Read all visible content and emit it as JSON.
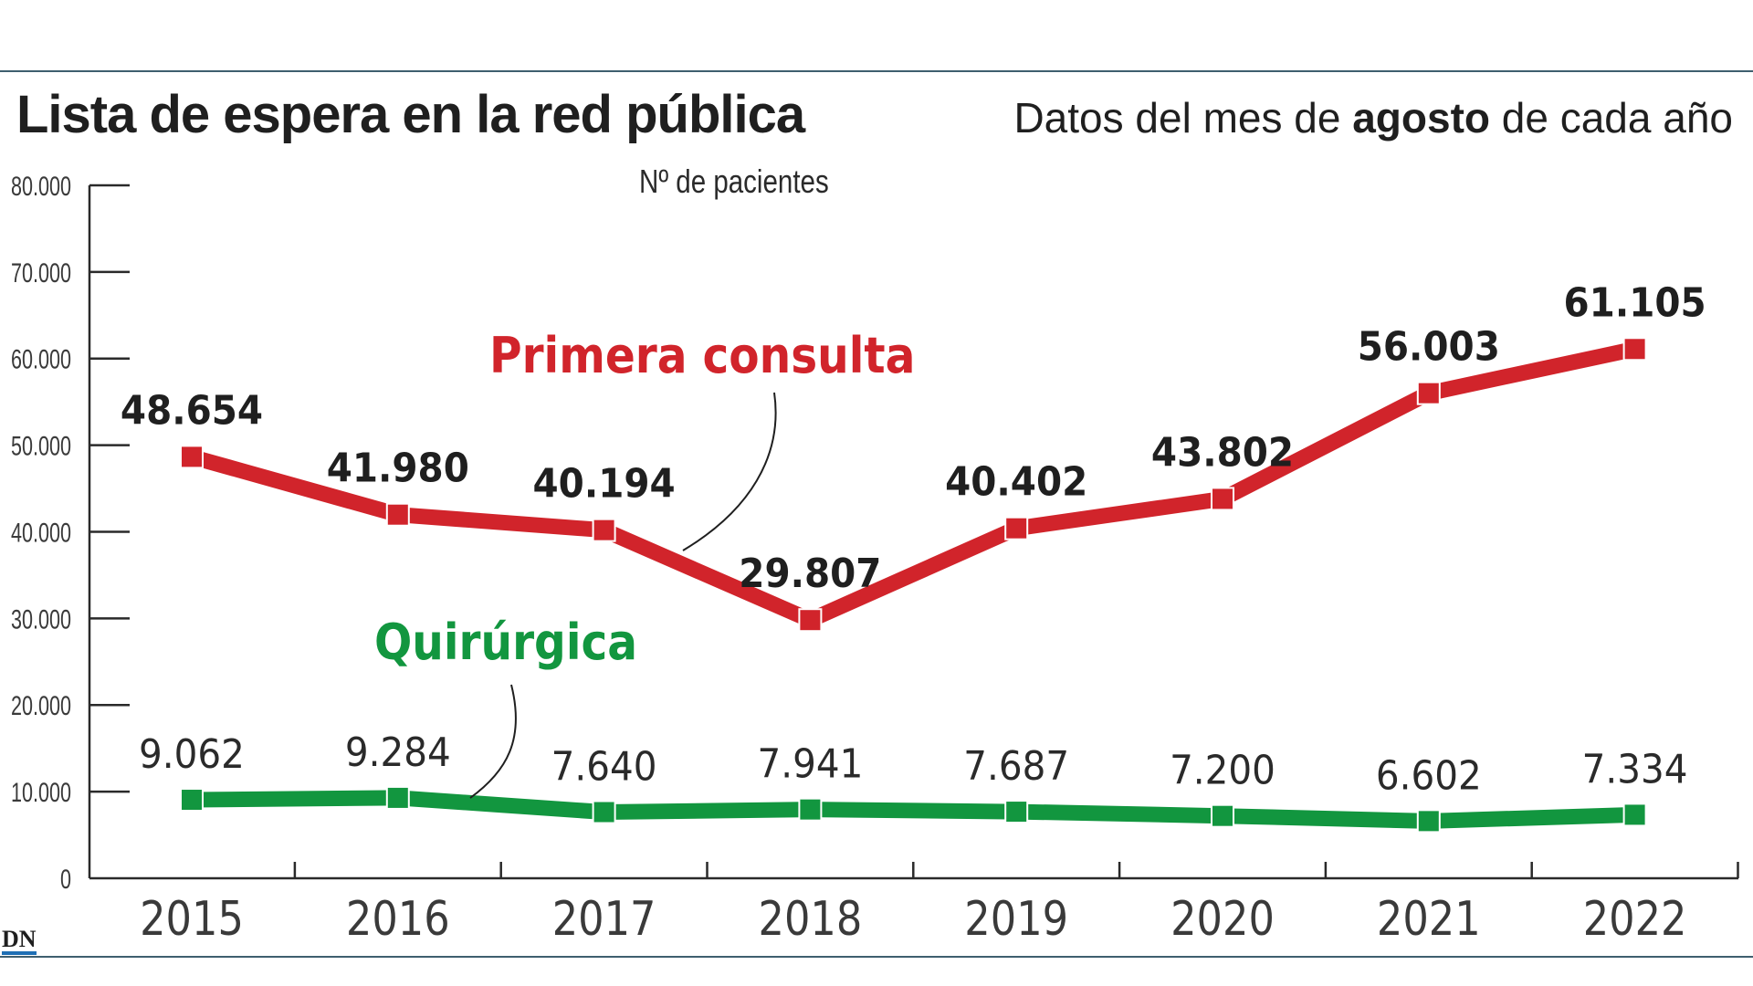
{
  "chart_data": {
    "type": "line",
    "title": "Lista de espera en la red pública",
    "subtitle_prefix": "Datos del mes de ",
    "subtitle_bold": "agosto",
    "subtitle_suffix": " de cada año",
    "ylabel": "Nº de pacientes",
    "ylim": [
      0,
      80000
    ],
    "yticks": [
      0,
      10000,
      20000,
      30000,
      40000,
      50000,
      60000,
      70000,
      80000
    ],
    "ytick_labels": [
      "0",
      "10.000",
      "20.000",
      "30.000",
      "40.000",
      "50.000",
      "60.000",
      "70.000",
      "80.000"
    ],
    "categories": [
      "2015",
      "2016",
      "2017",
      "2018",
      "2019",
      "2020",
      "2021",
      "2022"
    ],
    "series": [
      {
        "name": "Primera consulta",
        "color": "#d1242b",
        "values": [
          48654,
          41980,
          40194,
          29807,
          40402,
          43802,
          56003,
          61105
        ],
        "labels": [
          "48.654",
          "41.980",
          "40.194",
          "29.807",
          "40.402",
          "43.802",
          "56.003",
          "61.105"
        ]
      },
      {
        "name": "Quirúrgica",
        "color": "#12963f",
        "values": [
          9062,
          9284,
          7640,
          7941,
          7687,
          7200,
          6602,
          7334
        ],
        "labels": [
          "9.062",
          "9.284",
          "7.640",
          "7.941",
          "7.687",
          "7.200",
          "6.602",
          "7.334"
        ]
      }
    ],
    "grid": false,
    "legend": "inline labels"
  },
  "source_logo": "DN"
}
